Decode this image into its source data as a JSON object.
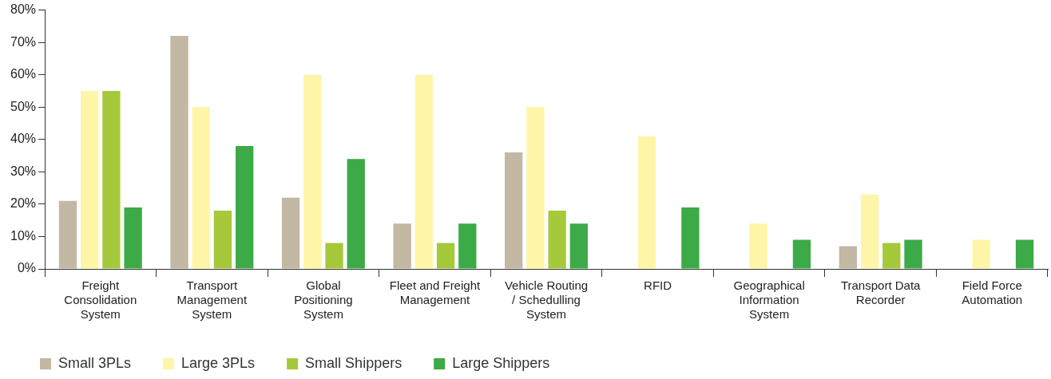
{
  "chart_data": {
    "type": "bar",
    "categories": [
      "Freight\nConsolidation\nSystem",
      "Transport\nManagement\nSystem",
      "Global\nPositioning\nSystem",
      "Fleet and Freight\nManagement",
      "Vehicle Routing\n/ Schedulling\nSystem",
      "RFID",
      "Geographical\nInformation\nSystem",
      "Transport Data\nRecorder",
      "Field Force\nAutomation"
    ],
    "series": [
      {
        "name": "Small 3PLs",
        "color": "#c2b8a3",
        "values": [
          21,
          72,
          22,
          14,
          36,
          null,
          null,
          7,
          null
        ]
      },
      {
        "name": "Large 3PLs",
        "color": "#fff5a8",
        "values": [
          55,
          50,
          60,
          60,
          50,
          41,
          14,
          23,
          9
        ]
      },
      {
        "name": "Small Shippers",
        "color": "#a5c93a",
        "values": [
          55,
          18,
          8,
          8,
          18,
          null,
          null,
          8,
          null
        ]
      },
      {
        "name": "Large Shippers",
        "color": "#3daa48",
        "values": [
          19,
          38,
          34,
          14,
          14,
          19,
          9,
          9,
          9
        ]
      }
    ],
    "ylim": [
      0,
      80
    ],
    "yticks": [
      {
        "value": 0,
        "label": "0%"
      },
      {
        "value": 10,
        "label": "10%"
      },
      {
        "value": 20,
        "label": "20%"
      },
      {
        "value": 30,
        "label": "30%"
      },
      {
        "value": 40,
        "label": "40%"
      },
      {
        "value": 50,
        "label": "50%"
      },
      {
        "value": 60,
        "label": "60%"
      },
      {
        "value": 70,
        "label": "70%"
      },
      {
        "value": 80,
        "label": "80%"
      }
    ],
    "grid": false,
    "legend": "bottom left"
  }
}
